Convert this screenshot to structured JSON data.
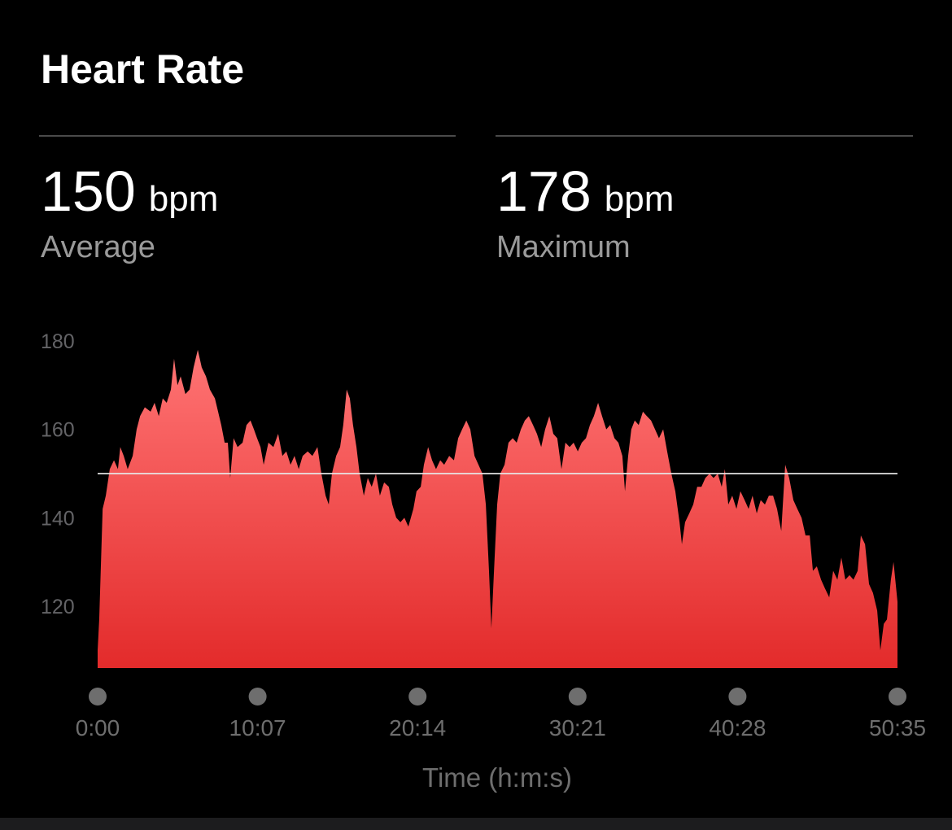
{
  "title": "Heart Rate",
  "stats": [
    {
      "value": 150,
      "unit": "bpm",
      "label": "Average"
    },
    {
      "value": 178,
      "unit": "bpm",
      "label": "Maximum"
    }
  ],
  "chart_data": {
    "type": "area",
    "x_label": "Time (h:m:s)",
    "xlim": [
      0,
      3035
    ],
    "xticks": [
      {
        "value": 0,
        "label": "0:00"
      },
      {
        "value": 607,
        "label": "10:07"
      },
      {
        "value": 1214,
        "label": "20:14"
      },
      {
        "value": 1821,
        "label": "30:21"
      },
      {
        "value": 2428,
        "label": "40:28"
      },
      {
        "value": 3035,
        "label": "50:35"
      }
    ],
    "ylim": [
      106,
      180
    ],
    "yticks": [
      120,
      140,
      160,
      180
    ],
    "x": [
      0,
      6,
      19,
      31,
      46,
      62,
      77,
      86,
      99,
      114,
      133,
      148,
      161,
      179,
      201,
      216,
      232,
      247,
      262,
      278,
      290,
      303,
      315,
      333,
      349,
      364,
      380,
      395,
      411,
      426,
      445,
      457,
      469,
      482,
      494,
      503,
      516,
      531,
      550,
      565,
      580,
      593,
      605,
      618,
      630,
      648,
      667,
      685,
      701,
      716,
      732,
      747,
      763,
      778,
      797,
      815,
      834,
      849,
      865,
      877,
      889,
      905,
      920,
      932,
      945,
      957,
      969,
      982,
      994,
      1010,
      1025,
      1040,
      1056,
      1071,
      1087,
      1105,
      1118,
      1133,
      1149,
      1164,
      1179,
      1198,
      1210,
      1226,
      1238,
      1254,
      1269,
      1284,
      1300,
      1315,
      1334,
      1352,
      1368,
      1383,
      1399,
      1414,
      1430,
      1445,
      1460,
      1473,
      1485,
      1494,
      1504,
      1516,
      1528,
      1544,
      1559,
      1575,
      1590,
      1606,
      1621,
      1636,
      1652,
      1667,
      1683,
      1698,
      1714,
      1729,
      1744,
      1760,
      1775,
      1791,
      1806,
      1822,
      1837,
      1853,
      1868,
      1883,
      1899,
      1914,
      1930,
      1945,
      1961,
      1976,
      1991,
      2001,
      2013,
      2025,
      2038,
      2053,
      2069,
      2084,
      2100,
      2115,
      2130,
      2146,
      2161,
      2177,
      2192,
      2208,
      2217,
      2229,
      2245,
      2260,
      2275,
      2291,
      2306,
      2322,
      2337,
      2353,
      2368,
      2380,
      2393,
      2408,
      2424,
      2439,
      2455,
      2470,
      2485,
      2501,
      2516,
      2532,
      2547,
      2563,
      2578,
      2594,
      2609,
      2624,
      2640,
      2655,
      2671,
      2686,
      2702,
      2714,
      2729,
      2745,
      2760,
      2776,
      2791,
      2807,
      2822,
      2837,
      2853,
      2868,
      2884,
      2896,
      2912,
      2927,
      2942,
      2958,
      2970,
      2983,
      2995,
      3010,
      3020,
      3035
    ],
    "series": [
      {
        "name": "Heart Rate",
        "color": "#f05050",
        "values": [
          110,
          117,
          142,
          145,
          151,
          153,
          151,
          156,
          154,
          151,
          154,
          160,
          163,
          165,
          164,
          166,
          163,
          167,
          166,
          169,
          176,
          170,
          172,
          168,
          169,
          174,
          178,
          174,
          172,
          169,
          167,
          164,
          161,
          157,
          157,
          149,
          158,
          156,
          157,
          161,
          162,
          160,
          158,
          156,
          152,
          157,
          156,
          159,
          154,
          155,
          152,
          154,
          151,
          154,
          155,
          154,
          156,
          150,
          145,
          143,
          150,
          154,
          156,
          161,
          169,
          167,
          161,
          156,
          150,
          145,
          149,
          147,
          150,
          145,
          148,
          147,
          143,
          140,
          139,
          140,
          138,
          142,
          146,
          147,
          152,
          156,
          153,
          151,
          153,
          152,
          154,
          153,
          158,
          160,
          162,
          160,
          154,
          152,
          150,
          143,
          128,
          115,
          128,
          143,
          150,
          152,
          157,
          158,
          157,
          160,
          162,
          163,
          161,
          159,
          156,
          160,
          163,
          159,
          158,
          151,
          157,
          156,
          157,
          155,
          157,
          158,
          161,
          163,
          166,
          163,
          160,
          161,
          158,
          157,
          154,
          146,
          154,
          160,
          162,
          161,
          164,
          163,
          162,
          160,
          158,
          160,
          155,
          150,
          146,
          139,
          134,
          139,
          141,
          143,
          147,
          147,
          149,
          150,
          149,
          150,
          147,
          151,
          143,
          145,
          142,
          146,
          144,
          142,
          145,
          141,
          144,
          143,
          145,
          145,
          142,
          137,
          152,
          149,
          144,
          142,
          140,
          136,
          136,
          128,
          129,
          126,
          124,
          122,
          128,
          126,
          131,
          126,
          127,
          126,
          128,
          136,
          134,
          125,
          123,
          119,
          110,
          116,
          117,
          126,
          130,
          121
        ]
      }
    ]
  }
}
